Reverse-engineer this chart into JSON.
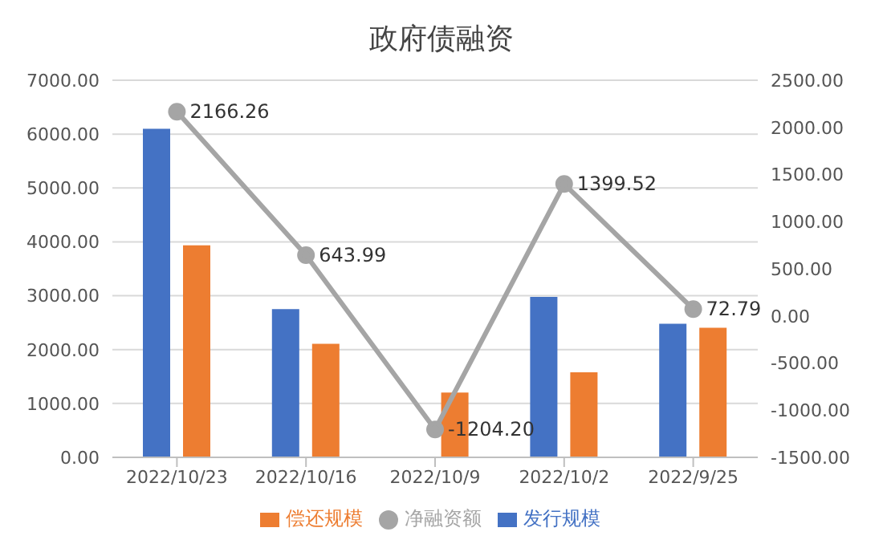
{
  "chart_data": {
    "type": "bar",
    "title": "政府债融资",
    "categories": [
      "2022/10/23",
      "2022/10/16",
      "2022/10/9",
      "2022/10/2",
      "2022/9/25"
    ],
    "series": [
      {
        "name": "发行规模",
        "color": "#4472c4",
        "values": [
          6100,
          2750,
          0,
          2980,
          2480
        ]
      },
      {
        "name": "偿还规模",
        "color": "#ed7d31",
        "values": [
          3934,
          2106,
          1204,
          1580,
          2407
        ]
      },
      {
        "name": "净融资额",
        "type": "line",
        "axis": "y2",
        "color": "#a5a5a5",
        "marker": "circle",
        "values": [
          2166.26,
          643.99,
          -1204.2,
          1399.52,
          72.79
        ],
        "value_labels": [
          "2166.26",
          "643.99",
          "-1204.20",
          "1399.52",
          "72.79"
        ]
      }
    ],
    "ylim": [
      0,
      7000
    ],
    "yticks": [
      {
        "value": 0,
        "label": "0.00"
      },
      {
        "value": 1000,
        "label": "1000.00"
      },
      {
        "value": 2000,
        "label": "2000.00"
      },
      {
        "value": 3000,
        "label": "3000.00"
      },
      {
        "value": 4000,
        "label": "4000.00"
      },
      {
        "value": 5000,
        "label": "5000.00"
      },
      {
        "value": 6000,
        "label": "6000.00"
      },
      {
        "value": 7000,
        "label": "7000.00"
      }
    ],
    "y2lim": [
      -1500,
      2500
    ],
    "y2ticks": [
      {
        "value": -1500,
        "label": "-1500.00"
      },
      {
        "value": -1000,
        "label": "-1000.00"
      },
      {
        "value": -500,
        "label": "-500.00"
      },
      {
        "value": 0,
        "label": "0.00"
      },
      {
        "value": 500,
        "label": "500.00"
      },
      {
        "value": 1000,
        "label": "1000.00"
      },
      {
        "value": 1500,
        "label": "1500.00"
      },
      {
        "value": 2000,
        "label": "2000.00"
      },
      {
        "value": 2500,
        "label": "2500.00"
      }
    ],
    "grid": "y",
    "legend": "bottom"
  }
}
